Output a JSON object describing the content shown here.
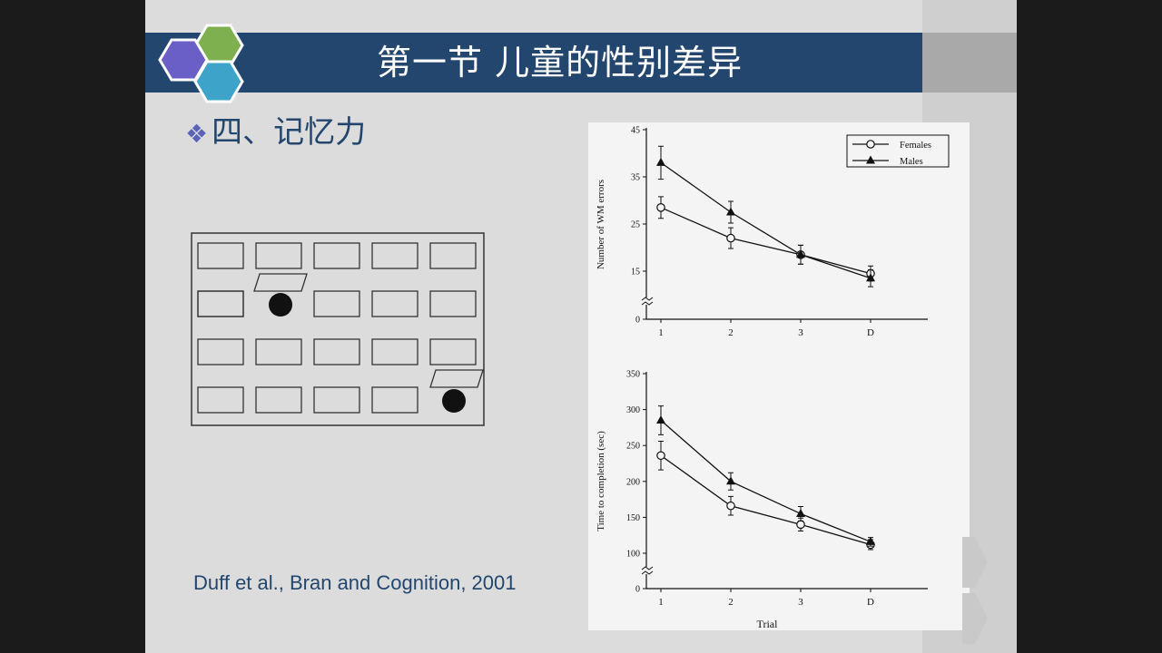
{
  "title": "第一节  儿童的性别差异",
  "section": {
    "bullet": "❖",
    "heading": "四、记忆力"
  },
  "citation": "Duff et al., Bran and Cognition, 2001",
  "colors": {
    "title_bar": "#23466e",
    "hex_purple": "#6a5fc7",
    "hex_green": "#7fb04f",
    "hex_blue": "#3ea3c9"
  },
  "chart_data": [
    {
      "type": "line",
      "ylabel": "Number of WM errors",
      "categories": [
        "1",
        "2",
        "3",
        "D"
      ],
      "ylim": [
        0,
        45
      ],
      "yticks": [
        "0",
        "15",
        "25",
        "35",
        "45"
      ],
      "axis_break": true,
      "legend_position": "top-right",
      "series": [
        {
          "name": "Females",
          "marker": "open-circle",
          "values": [
            28.5,
            22,
            18.5,
            14.5
          ],
          "errors": [
            2.3,
            2.2,
            2.0,
            1.6
          ]
        },
        {
          "name": "Males",
          "marker": "filled-triangle",
          "values": [
            38,
            27.5,
            18.5,
            13.5
          ],
          "errors": [
            3.5,
            2.3,
            2.0,
            1.8
          ]
        }
      ]
    },
    {
      "type": "line",
      "xlabel": "Trial",
      "ylabel": "Time to completion (sec)",
      "categories": [
        "1",
        "2",
        "3",
        "D"
      ],
      "ylim": [
        0,
        350
      ],
      "yticks": [
        "0",
        "100",
        "150",
        "200",
        "250",
        "300",
        "350"
      ],
      "axis_break": true,
      "series": [
        {
          "name": "Females",
          "marker": "open-circle",
          "values": [
            236,
            166,
            140,
            112
          ],
          "errors": [
            20,
            13,
            9,
            7
          ]
        },
        {
          "name": "Males",
          "marker": "filled-triangle",
          "values": [
            285,
            200,
            155,
            116
          ],
          "errors": [
            20,
            12,
            10,
            6
          ]
        }
      ]
    }
  ]
}
